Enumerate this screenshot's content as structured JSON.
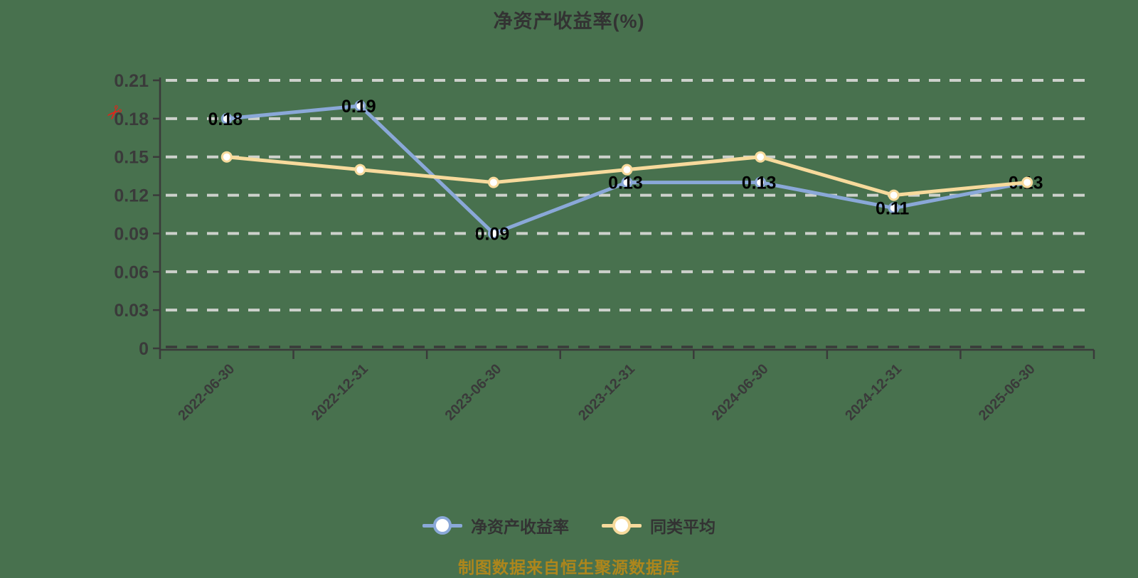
{
  "title": "净资产收益率(%)",
  "caption": "制图数据来自恒生聚源数据库",
  "scissors_glyph": "✂",
  "legend": {
    "items": [
      {
        "label": "净资产收益率"
      },
      {
        "label": "同类平均"
      }
    ]
  },
  "colors": {
    "background": "#48714E",
    "title_text": "#333333",
    "axis": "#3A3A3A",
    "grid": "#CDD1CC",
    "data_label": "#000000",
    "caption_text": "#AD861C",
    "scissors": "#E0241A",
    "series_blue": "#8AA8D8",
    "series_yellow": "#F7DA9C"
  },
  "chart_data": {
    "type": "line",
    "title": "净资产收益率(%)",
    "categories": [
      "2022-06-30",
      "2022-12-31",
      "2023-06-30",
      "2023-12-31",
      "2024-06-30",
      "2024-12-31",
      "2025-06-30"
    ],
    "series": [
      {
        "name": "净资产收益率",
        "color": "#8AA8D8",
        "values": [
          0.18,
          0.19,
          0.09,
          0.13,
          0.13,
          0.11,
          0.13
        ],
        "point_labels": [
          "0.18",
          "0.19",
          "0.09",
          "0.13",
          "0.13",
          "0.11",
          "0.13"
        ]
      },
      {
        "name": "同类平均",
        "color": "#F7DA9C",
        "values": [
          0.15,
          0.14,
          0.13,
          0.14,
          0.15,
          0.12,
          0.13
        ],
        "point_labels": null
      }
    ],
    "ylim": [
      0,
      0.21
    ],
    "yticks": [
      0,
      0.03,
      0.06,
      0.09,
      0.12,
      0.15,
      0.18,
      0.21
    ],
    "ytick_labels": [
      "0",
      "0.03",
      "0.06",
      "0.09",
      "0.12",
      "0.15",
      "0.18",
      "0.21"
    ],
    "grid": true,
    "grid_style": "dashed",
    "legend_position": "bottom",
    "marker": "circle-white-fill"
  }
}
